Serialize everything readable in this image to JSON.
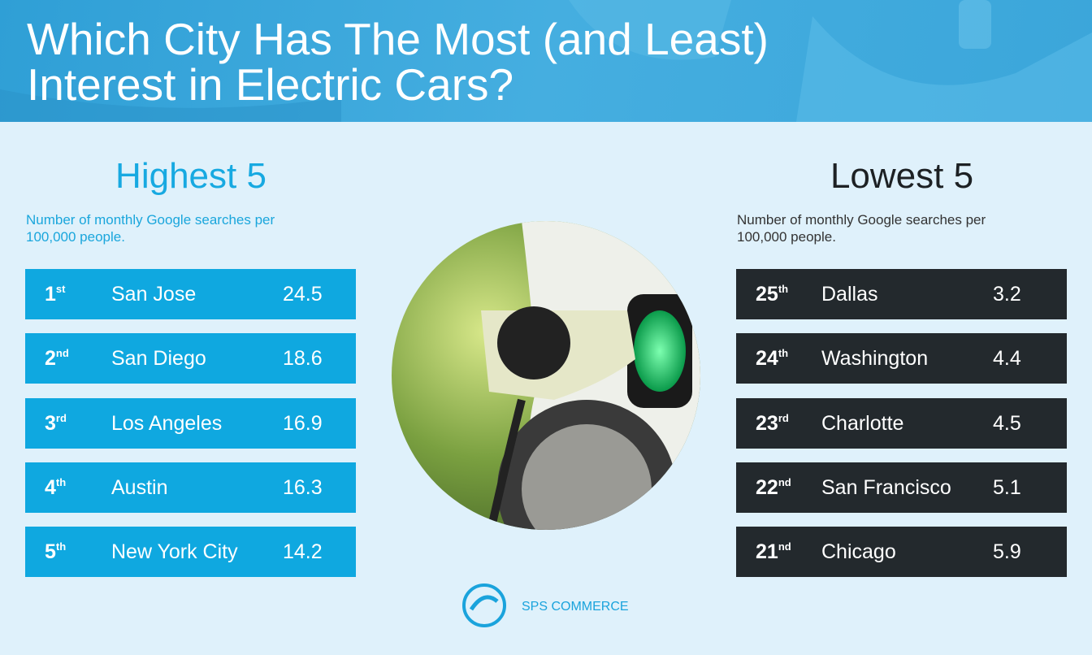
{
  "header": {
    "title_lines": [
      "Which City Has The Most (and Least)",
      "Interest in Electric Cars?"
    ]
  },
  "highest": {
    "title": "Highest 5",
    "subtitle": "Number of monthly Google searches per 100,000 people.",
    "rows": [
      {
        "rank": "1",
        "suffix": "st",
        "city": "San Jose",
        "value": 24.5
      },
      {
        "rank": "2",
        "suffix": "nd",
        "city": "San Diego",
        "value": 18.6
      },
      {
        "rank": "3",
        "suffix": "rd",
        "city": "Los Angeles",
        "value": 16.9
      },
      {
        "rank": "4",
        "suffix": "th",
        "city": "Austin",
        "value": 16.3
      },
      {
        "rank": "5",
        "suffix": "th",
        "city": "New York City",
        "value": 14.2
      }
    ]
  },
  "lowest": {
    "title": "Lowest 5",
    "subtitle": "Number of monthly Google searches per 100,000 people.",
    "rows": [
      {
        "rank": "25",
        "suffix": "th",
        "city": "Dallas",
        "value": 3.2
      },
      {
        "rank": "24",
        "suffix": "th",
        "city": "Washington",
        "value": 4.4
      },
      {
        "rank": "23",
        "suffix": "rd",
        "city": "Charlotte",
        "value": 4.5
      },
      {
        "rank": "22",
        "suffix": "nd",
        "city": "San Francisco",
        "value": 5.1
      },
      {
        "rank": "21",
        "suffix": "nd",
        "city": "Chicago",
        "value": 5.9
      }
    ]
  },
  "footer": {
    "logo_text": "SPS COMMERCE"
  }
}
